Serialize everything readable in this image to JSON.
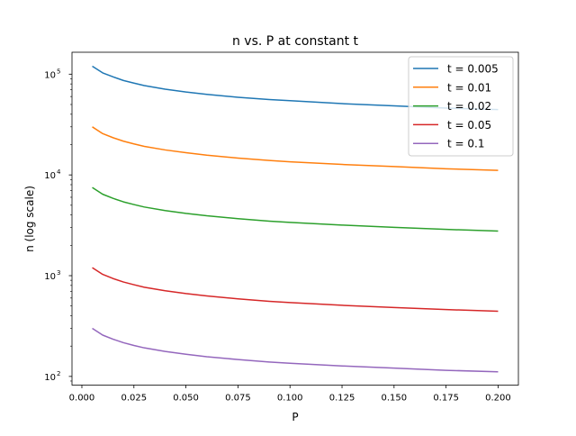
{
  "chart_data": {
    "type": "line",
    "title": "n vs. P at constant t",
    "xlabel": "P",
    "ylabel": "n (log scale)",
    "xscale": "linear",
    "yscale": "log",
    "xlim": [
      -0.00475,
      0.20975
    ],
    "ylim": [
      82,
      165000
    ],
    "grid": false,
    "legend_position": "top-right",
    "xticks": [
      0.0,
      0.025,
      0.05,
      0.075,
      0.1,
      0.125,
      0.15,
      0.175,
      0.2
    ],
    "xtick_labels": [
      "0.000",
      "0.025",
      "0.050",
      "0.075",
      "0.100",
      "0.125",
      "0.150",
      "0.175",
      "0.200"
    ],
    "yticks": [
      100,
      1000,
      10000,
      100000
    ],
    "ytick_exponents": [
      "2",
      "3",
      "4",
      "5"
    ],
    "ytick_base": "10",
    "x": [
      0.005,
      0.01,
      0.015,
      0.02,
      0.025,
      0.03,
      0.04,
      0.05,
      0.06,
      0.075,
      0.09,
      0.1,
      0.125,
      0.15,
      0.175,
      0.2
    ],
    "series": [
      {
        "name": "t = 0.005",
        "color": "#1f77b4",
        "values": [
          120000,
          103000,
          94000,
          86500,
          81500,
          77000,
          71000,
          66500,
          63000,
          59000,
          56000,
          54500,
          51000,
          48500,
          46000,
          44500
        ]
      },
      {
        "name": "t = 0.01",
        "color": "#ff7f0e",
        "values": [
          30000,
          25700,
          23400,
          21600,
          20300,
          19200,
          17700,
          16600,
          15700,
          14700,
          13900,
          13500,
          12700,
          12100,
          11500,
          11100
        ]
      },
      {
        "name": "t = 0.02",
        "color": "#2ca02c",
        "values": [
          7500,
          6430,
          5850,
          5400,
          5080,
          4800,
          4430,
          4150,
          3930,
          3680,
          3480,
          3380,
          3180,
          3020,
          2880,
          2770
        ]
      },
      {
        "name": "t = 0.05",
        "color": "#d62728",
        "values": [
          1200,
          1030,
          936,
          865,
          813,
          768,
          709,
          664,
          629,
          589,
          557,
          541,
          508,
          483,
          461,
          443
        ]
      },
      {
        "name": "t = 0.1",
        "color": "#9467bd",
        "values": [
          300,
          257,
          234,
          216,
          203,
          192,
          177,
          166,
          157,
          147,
          139,
          135,
          127,
          121,
          115,
          111
        ]
      }
    ]
  }
}
